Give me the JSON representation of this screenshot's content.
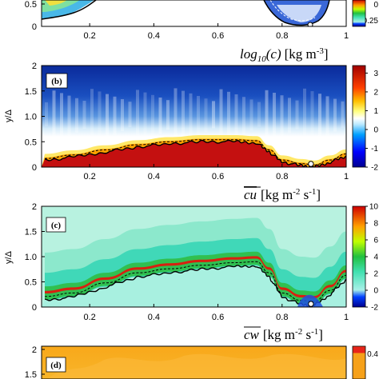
{
  "chart_data": [
    {
      "type": "heatmap",
      "panel": "a",
      "x_ticks": [
        "0.2",
        "0.4",
        "0.6",
        "0.8",
        "1"
      ],
      "y_ticks": [
        "0",
        "0.5"
      ],
      "colorbar_ticks": [
        "0",
        "-0.25"
      ],
      "colormap": "jet",
      "xlim": [
        0.05,
        1.0
      ]
    },
    {
      "type": "heatmap",
      "panel": "b",
      "title": "log10(c) [kg m-3]",
      "title_parts": {
        "quantity": "log",
        "sub": "10",
        "arg": "(c)",
        "units": "[kg m",
        "units_sup": "-3",
        "units_end": "]"
      },
      "tag": "(b)",
      "ylabel": "y/Δ",
      "x_ticks": [
        "0.2",
        "0.4",
        "0.6",
        "0.8",
        "1"
      ],
      "y_ticks": [
        "0",
        "0.5",
        "1.0",
        "1.5",
        "2"
      ],
      "colorbar_ticks": [
        "3",
        "2",
        "1",
        "0",
        "-1",
        "-2"
      ],
      "colorbar_range": [
        -2,
        3.4
      ],
      "colormap": "jet",
      "xlim": [
        0.05,
        1.0
      ],
      "ylim": [
        0,
        2
      ],
      "interface_y": [
        [
          0.06,
          0.13
        ],
        [
          0.15,
          0.2
        ],
        [
          0.25,
          0.3
        ],
        [
          0.35,
          0.4
        ],
        [
          0.45,
          0.46
        ],
        [
          0.55,
          0.5
        ],
        [
          0.65,
          0.5
        ],
        [
          0.72,
          0.48
        ],
        [
          0.76,
          0.3
        ],
        [
          0.8,
          0.1
        ],
        [
          0.86,
          0.03
        ],
        [
          0.9,
          0.0
        ],
        [
          0.95,
          0.1
        ],
        [
          1.0,
          0.22
        ]
      ],
      "marker": [
        0.89,
        0.0
      ]
    },
    {
      "type": "heatmap",
      "panel": "c",
      "title": "cu [kg m-2 s-1]",
      "title_parts": {
        "quantity": "cu",
        "units": "[kg m",
        "sup1": "-2",
        "mid": " s",
        "sup2": "-1",
        "units_end": "]"
      },
      "tag": "(c)",
      "ylabel": "y/Δ",
      "x_ticks": [
        "0.2",
        "0.4",
        "0.6",
        "0.8",
        "1"
      ],
      "y_ticks": [
        "0",
        "0.5",
        "1.0",
        "1.5",
        "2"
      ],
      "colorbar_ticks": [
        "10",
        "8",
        "6",
        "4",
        "2",
        "0",
        "-2"
      ],
      "colorbar_range": [
        -2,
        10
      ],
      "colormap": "jet",
      "xlim": [
        0.05,
        1.0
      ],
      "ylim": [
        0,
        2
      ],
      "interface_y": [
        [
          0.06,
          0.13
        ],
        [
          0.15,
          0.2
        ],
        [
          0.25,
          0.4
        ],
        [
          0.35,
          0.6
        ],
        [
          0.45,
          0.68
        ],
        [
          0.55,
          0.75
        ],
        [
          0.65,
          0.8
        ],
        [
          0.72,
          0.82
        ],
        [
          0.76,
          0.6
        ],
        [
          0.8,
          0.2
        ],
        [
          0.86,
          0.05
        ],
        [
          0.9,
          0.03
        ],
        [
          0.95,
          0.25
        ],
        [
          1.0,
          0.55
        ]
      ],
      "marker": [
        0.89,
        0.03
      ]
    },
    {
      "type": "heatmap",
      "panel": "d",
      "title": "cw [kg m-2 s-1]",
      "title_parts": {
        "quantity": "cw",
        "units": "[kg m",
        "sup1": "-2",
        "mid": " s",
        "sup2": "-1",
        "units_end": "]"
      },
      "tag": "(d)",
      "y_ticks": [
        "2",
        "1.5"
      ],
      "colorbar_ticks": [
        "0.4"
      ],
      "colormap": "jet"
    }
  ]
}
